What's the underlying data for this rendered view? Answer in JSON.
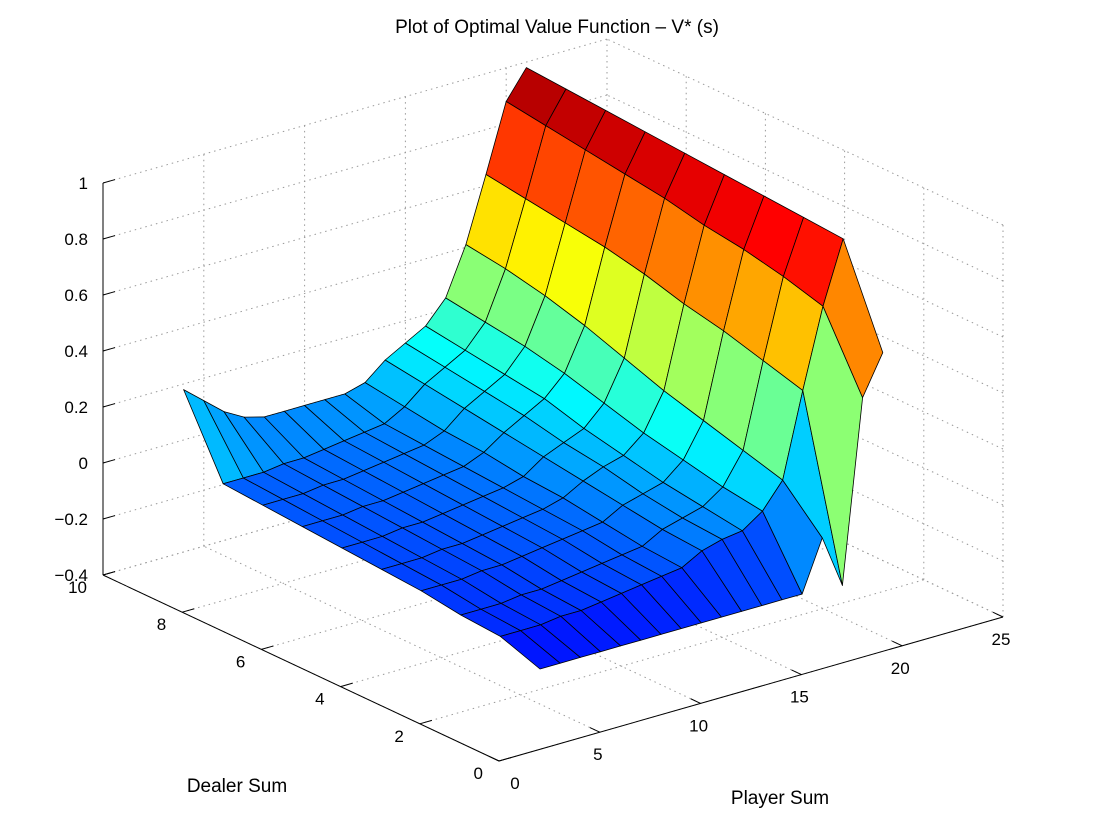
{
  "chart_data": {
    "type": "surface",
    "title": "Plot of Optimal Value Function – V* (s)",
    "xlabel": "Player Sum",
    "ylabel": "Dealer Sum",
    "zlabel": "",
    "xlim": [
      0,
      25
    ],
    "ylim": [
      0,
      10
    ],
    "zlim": [
      -0.4,
      1
    ],
    "x_ticks": [
      "0",
      "5",
      "10",
      "15",
      "20",
      "25"
    ],
    "y_ticks": [
      "0",
      "2",
      "4",
      "6",
      "8",
      "10"
    ],
    "z_ticks": [
      "-0.4",
      "-0.2",
      "0",
      "0.2",
      "0.4",
      "0.6",
      "0.8",
      "1"
    ],
    "grid": true,
    "colormap": "jet",
    "player_sums": [
      4,
      5,
      6,
      7,
      8,
      9,
      10,
      11,
      12,
      13,
      14,
      15,
      16,
      17,
      18,
      19,
      20,
      21
    ],
    "dealer_sums": [
      1,
      2,
      3,
      4,
      5,
      6,
      7,
      8,
      9,
      10
    ],
    "values": [
      [
        -0.22,
        -0.22,
        -0.22,
        -0.22,
        -0.22,
        -0.22,
        -0.22,
        -0.22,
        -0.22,
        -0.22,
        -0.22,
        -0.22,
        -0.22,
        -0.22,
        -0.04,
        -0.23,
        0.42,
        0.56
      ],
      [
        -0.17,
        -0.17,
        -0.17,
        -0.16,
        -0.16,
        -0.15,
        -0.14,
        -0.13,
        -0.12,
        -0.11,
        -0.07,
        -0.05,
        -0.04,
        0.01,
        0.1,
        0.4,
        0.68,
        0.9
      ],
      [
        -0.16,
        -0.16,
        -0.16,
        -0.15,
        -0.15,
        -0.14,
        -0.13,
        -0.12,
        -0.11,
        -0.1,
        -0.06,
        -0.04,
        -0.02,
        0.03,
        0.14,
        0.44,
        0.72,
        0.91
      ],
      [
        -0.14,
        -0.14,
        -0.14,
        -0.13,
        -0.13,
        -0.12,
        -0.11,
        -0.1,
        -0.09,
        -0.08,
        -0.04,
        -0.02,
        0.0,
        0.06,
        0.18,
        0.48,
        0.75,
        0.92
      ],
      [
        -0.13,
        -0.13,
        -0.13,
        -0.12,
        -0.12,
        -0.11,
        -0.1,
        -0.09,
        -0.08,
        -0.06,
        -0.02,
        0.01,
        0.03,
        0.09,
        0.22,
        0.51,
        0.77,
        0.93
      ],
      [
        -0.12,
        -0.12,
        -0.12,
        -0.11,
        -0.11,
        -0.1,
        -0.09,
        -0.08,
        -0.07,
        -0.05,
        0.0,
        0.03,
        0.06,
        0.13,
        0.27,
        0.55,
        0.8,
        0.94
      ],
      [
        -0.11,
        -0.11,
        -0.11,
        -0.1,
        -0.1,
        -0.09,
        -0.08,
        -0.07,
        -0.06,
        -0.03,
        0.02,
        0.06,
        0.1,
        0.17,
        0.32,
        0.58,
        0.82,
        0.95
      ],
      [
        -0.1,
        -0.1,
        -0.1,
        -0.09,
        -0.09,
        -0.08,
        -0.07,
        -0.06,
        -0.05,
        -0.02,
        0.04,
        0.08,
        0.12,
        0.2,
        0.36,
        0.6,
        0.84,
        0.96
      ],
      [
        -0.09,
        -0.09,
        -0.09,
        -0.08,
        -0.08,
        -0.07,
        -0.06,
        -0.05,
        -0.04,
        0.0,
        0.06,
        0.1,
        0.14,
        0.22,
        0.39,
        0.62,
        0.86,
        0.97
      ],
      [
        0.18,
        0.12,
        0.06,
        0.02,
        0.0,
        0.0,
        0.0,
        0.0,
        0.0,
        0.02,
        0.08,
        0.12,
        0.16,
        0.24,
        0.41,
        0.64,
        0.88,
        0.98
      ]
    ]
  }
}
